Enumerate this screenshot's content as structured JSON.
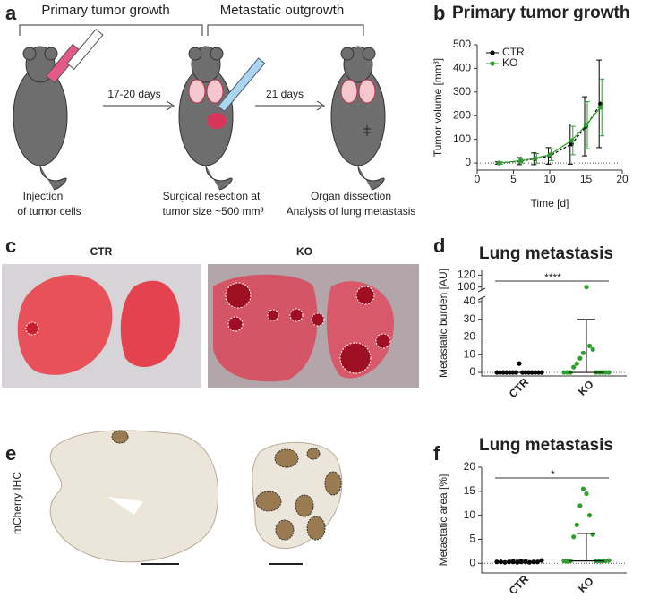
{
  "panel_labels": [
    "a",
    "b",
    "c",
    "d",
    "e",
    "f"
  ],
  "schematic": {
    "phases": [
      "Primary tumor growth",
      "Metastatic outgrowth"
    ],
    "arrows": [
      "17-20 days",
      "21 days"
    ],
    "steps": [
      [
        "Injection",
        "of tumor cells"
      ],
      [
        "Surgical resection at",
        "tumor size ~500 mm³"
      ],
      [
        "Organ dissection",
        "Analysis of lung metastasis"
      ]
    ]
  },
  "photos": {
    "groups": [
      "CTR",
      "KO"
    ]
  },
  "ihc": {
    "label": "mCherry IHC"
  },
  "chart_data": [
    {
      "type": "line",
      "title": "Primary tumor growth",
      "x_label": "Time [d]",
      "y_label": "Tumor volume [mm³]",
      "x": [
        3,
        6,
        8,
        10,
        13,
        15,
        17
      ],
      "series": [
        {
          "name": "CTR",
          "color": "#000000",
          "values": [
            0,
            8,
            18,
            30,
            80,
            155,
            250
          ],
          "errors": [
            5,
            15,
            25,
            35,
            85,
            125,
            185
          ]
        },
        {
          "name": "KO",
          "color": "#2e9e2e",
          "values": [
            0,
            10,
            20,
            35,
            95,
            160,
            235
          ],
          "errors": [
            5,
            10,
            20,
            25,
            60,
            100,
            120
          ]
        }
      ],
      "xlim": [
        0,
        20
      ],
      "xticks": [
        0,
        5,
        10,
        15,
        20
      ],
      "ylim": [
        -30,
        500
      ],
      "yticks": [
        0,
        100,
        200,
        300,
        400,
        500
      ],
      "legend": "upper left"
    },
    {
      "type": "dot",
      "title": "Lung metastasis",
      "y_label": "Metastatic burden [AU]",
      "significance": "****",
      "categories": [
        "CTR",
        "KO"
      ],
      "groups": [
        {
          "color": "#000000",
          "values": [
            0,
            0,
            0,
            0,
            0,
            0,
            0,
            5,
            0,
            0,
            0,
            0,
            0,
            0,
            0
          ],
          "center": 0,
          "upper": 0
        },
        {
          "color": "#2e9e2e",
          "values": [
            0,
            0,
            0,
            3,
            5,
            8,
            11,
            100,
            15,
            13,
            0,
            0,
            0,
            0,
            0
          ],
          "center": 0,
          "upper": 30
        }
      ],
      "ylim": [
        -2,
        128
      ],
      "ybreak": [
        42,
        95
      ],
      "yticks": [
        0,
        10,
        20,
        30,
        40,
        100,
        120
      ]
    },
    {
      "type": "dot",
      "title": "Lung metastasis",
      "y_label": "Metastatic area [%]",
      "significance": "*",
      "categories": [
        "CTR",
        "KO"
      ],
      "groups": [
        {
          "color": "#000000",
          "values": [
            0.3,
            0.3,
            0.2,
            0.3,
            0.3,
            0.2,
            0.3,
            0.3,
            0.2,
            0.3,
            0.3,
            0.6
          ],
          "center": 0.3,
          "upper": 0.8
        },
        {
          "color": "#2e9e2e",
          "values": [
            0.5,
            0.4,
            0.5,
            5.5,
            8,
            12,
            15.5,
            14.5,
            10,
            6,
            0.5,
            0.5,
            0.4,
            0.5,
            0.6
          ],
          "center": 0.5,
          "upper": 6.2
        }
      ],
      "ylim": [
        -2,
        20
      ],
      "yticks": [
        0,
        5,
        10,
        15,
        20
      ]
    }
  ]
}
